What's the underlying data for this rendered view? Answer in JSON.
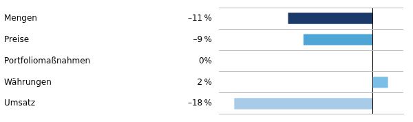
{
  "chart_data": {
    "type": "bar",
    "orientation": "horizontal",
    "categories": [
      "Mengen",
      "Preise",
      "Portfoliomaßnahmen",
      "Währungen",
      "Umsatz"
    ],
    "values": [
      -11,
      -9,
      0,
      2,
      -18
    ],
    "value_labels": [
      "–11 %",
      "–9 %",
      "0%",
      "2 %",
      "–18 %"
    ],
    "data_labels": true,
    "colors": [
      "#1a3a6b",
      "#4da6d6",
      "#ffffff",
      "#7bbfe8",
      "#a8cce8"
    ],
    "xlim": [
      -20,
      4
    ],
    "xticks": [
      0
    ],
    "tick_labels": "y",
    "grid": true
  }
}
